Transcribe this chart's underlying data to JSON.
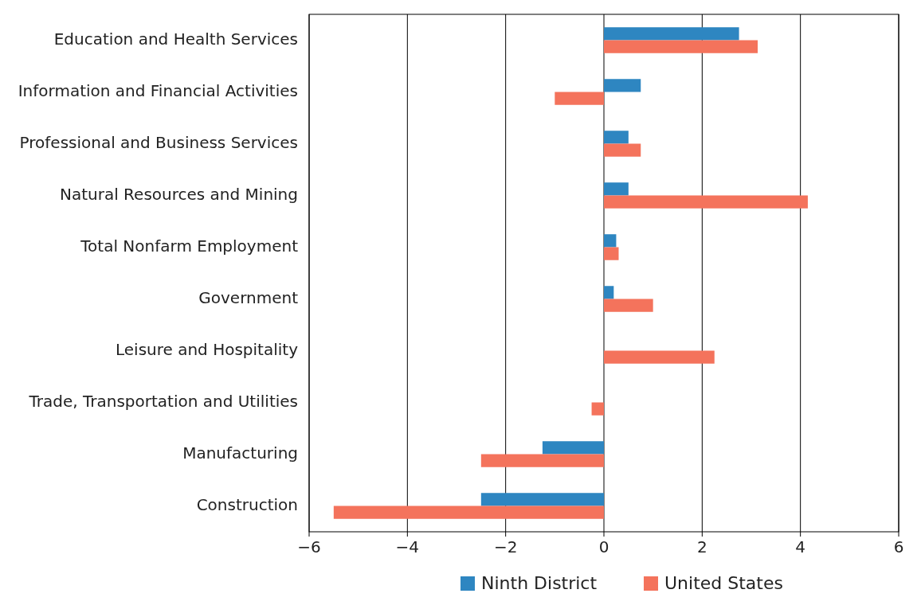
{
  "chart_data": {
    "type": "bar",
    "orientation": "horizontal",
    "categories": [
      "Education and Health Services",
      "Information and Financial Activities",
      "Professional and Business Services",
      "Natural Resources and Mining",
      "Total Nonfarm Employment",
      "Government",
      "Leisure and Hospitality",
      "Trade, Transportation and Utilities",
      "Manufacturing",
      "Construction"
    ],
    "series": [
      {
        "name": "Ninth District",
        "color": "#2e86c1",
        "values": [
          2.75,
          0.75,
          0.5,
          0.5,
          0.25,
          0.2,
          0,
          0,
          -1.25,
          -2.5
        ]
      },
      {
        "name": "United States",
        "color": "#f4735c",
        "values": [
          3.13,
          -1.0,
          0.75,
          4.15,
          0.3,
          1.0,
          2.25,
          -0.25,
          -2.5,
          -5.5
        ]
      }
    ],
    "xlim": [
      -6,
      6
    ],
    "xticks": [
      {
        "value": -6,
        "label": "−6"
      },
      {
        "value": -4,
        "label": "−4"
      },
      {
        "value": -2,
        "label": "−2"
      },
      0,
      2,
      4,
      6
    ],
    "grid": "x",
    "legend": "bottom"
  }
}
